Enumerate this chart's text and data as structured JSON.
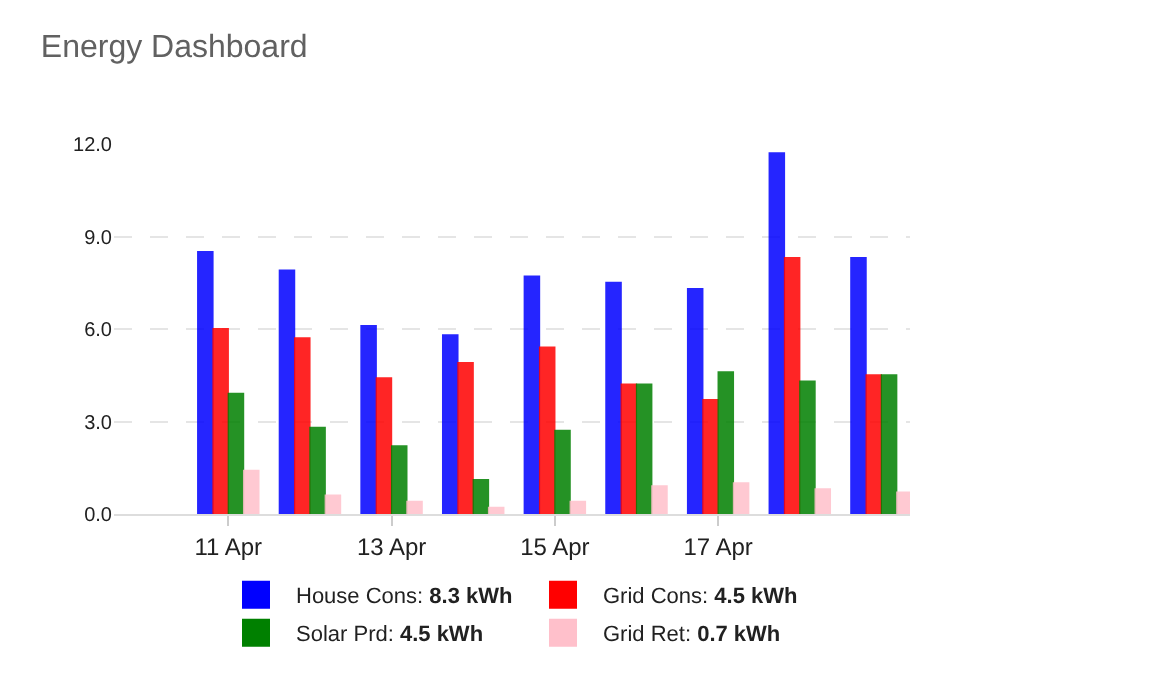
{
  "chart_data": {
    "type": "bar",
    "title": "Energy Dashboard",
    "categories": [
      "11 Apr",
      null,
      "13 Apr",
      null,
      "15 Apr",
      null,
      "17 Apr",
      null,
      null
    ],
    "series": [
      {
        "name": "House Cons: 8.3 kWh",
        "color": "#0000ff",
        "values": [
          8.5,
          7.9,
          6.1,
          5.8,
          7.7,
          7.5,
          7.3,
          11.7,
          8.3
        ]
      },
      {
        "name": "Grid Cons: 4.5 kWh",
        "color": "#ff0000",
        "values": [
          6.0,
          5.7,
          4.4,
          4.9,
          5.4,
          4.2,
          3.7,
          8.3,
          4.5
        ]
      },
      {
        "name": "Solar Prd: 4.5 kWh",
        "color": "#008000",
        "values": [
          3.9,
          2.8,
          2.2,
          1.1,
          2.7,
          4.2,
          4.6,
          4.3,
          4.5
        ]
      },
      {
        "name": "Grid Ret: 0.7 kWh",
        "color": "#ffc0cb",
        "values": [
          1.4,
          0.6,
          0.4,
          0.2,
          0.4,
          0.9,
          1.0,
          0.8,
          0.7
        ]
      }
    ],
    "ylim": [
      0,
      12
    ],
    "yticks": [
      {
        "value": 0,
        "label": "0.0"
      },
      {
        "value": 3,
        "label": "3.0"
      },
      {
        "value": 6,
        "label": "6.0"
      },
      {
        "value": 9,
        "label": "9.0"
      },
      {
        "value": 12,
        "label": "12.0"
      }
    ],
    "grid": "y",
    "legend": "bottom"
  }
}
